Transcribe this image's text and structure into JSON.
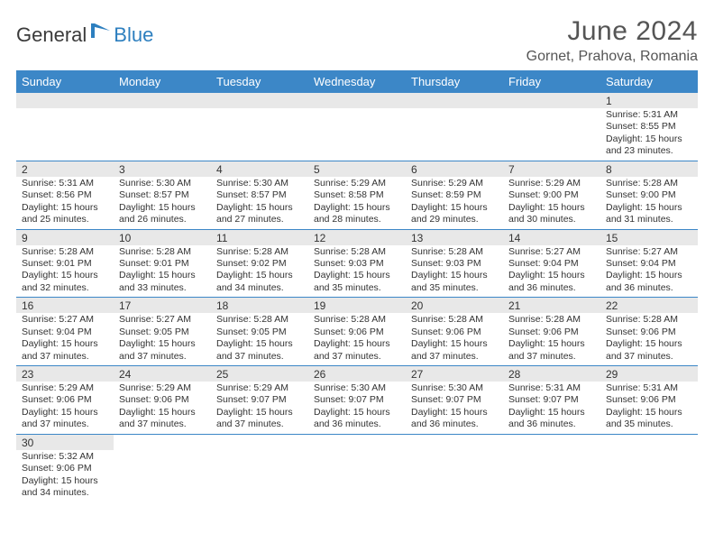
{
  "branding": {
    "general": "General",
    "blue": "Blue",
    "icon_color": "#2d7fbf"
  },
  "header": {
    "title": "June 2024",
    "location": "Gornet, Prahova, Romania"
  },
  "colors": {
    "header_bg": "#3c87c7",
    "header_text": "#ffffff",
    "daynum_bg": "#e8e8e8",
    "row_border": "#3c87c7",
    "body_text": "#333333",
    "title_text": "#555555"
  },
  "weekdays": [
    "Sunday",
    "Monday",
    "Tuesday",
    "Wednesday",
    "Thursday",
    "Friday",
    "Saturday"
  ],
  "weeks": [
    [
      null,
      null,
      null,
      null,
      null,
      null,
      {
        "n": "1",
        "sr": "Sunrise: 5:31 AM",
        "ss": "Sunset: 8:55 PM",
        "d1": "Daylight: 15 hours",
        "d2": "and 23 minutes."
      }
    ],
    [
      {
        "n": "2",
        "sr": "Sunrise: 5:31 AM",
        "ss": "Sunset: 8:56 PM",
        "d1": "Daylight: 15 hours",
        "d2": "and 25 minutes."
      },
      {
        "n": "3",
        "sr": "Sunrise: 5:30 AM",
        "ss": "Sunset: 8:57 PM",
        "d1": "Daylight: 15 hours",
        "d2": "and 26 minutes."
      },
      {
        "n": "4",
        "sr": "Sunrise: 5:30 AM",
        "ss": "Sunset: 8:57 PM",
        "d1": "Daylight: 15 hours",
        "d2": "and 27 minutes."
      },
      {
        "n": "5",
        "sr": "Sunrise: 5:29 AM",
        "ss": "Sunset: 8:58 PM",
        "d1": "Daylight: 15 hours",
        "d2": "and 28 minutes."
      },
      {
        "n": "6",
        "sr": "Sunrise: 5:29 AM",
        "ss": "Sunset: 8:59 PM",
        "d1": "Daylight: 15 hours",
        "d2": "and 29 minutes."
      },
      {
        "n": "7",
        "sr": "Sunrise: 5:29 AM",
        "ss": "Sunset: 9:00 PM",
        "d1": "Daylight: 15 hours",
        "d2": "and 30 minutes."
      },
      {
        "n": "8",
        "sr": "Sunrise: 5:28 AM",
        "ss": "Sunset: 9:00 PM",
        "d1": "Daylight: 15 hours",
        "d2": "and 31 minutes."
      }
    ],
    [
      {
        "n": "9",
        "sr": "Sunrise: 5:28 AM",
        "ss": "Sunset: 9:01 PM",
        "d1": "Daylight: 15 hours",
        "d2": "and 32 minutes."
      },
      {
        "n": "10",
        "sr": "Sunrise: 5:28 AM",
        "ss": "Sunset: 9:01 PM",
        "d1": "Daylight: 15 hours",
        "d2": "and 33 minutes."
      },
      {
        "n": "11",
        "sr": "Sunrise: 5:28 AM",
        "ss": "Sunset: 9:02 PM",
        "d1": "Daylight: 15 hours",
        "d2": "and 34 minutes."
      },
      {
        "n": "12",
        "sr": "Sunrise: 5:28 AM",
        "ss": "Sunset: 9:03 PM",
        "d1": "Daylight: 15 hours",
        "d2": "and 35 minutes."
      },
      {
        "n": "13",
        "sr": "Sunrise: 5:28 AM",
        "ss": "Sunset: 9:03 PM",
        "d1": "Daylight: 15 hours",
        "d2": "and 35 minutes."
      },
      {
        "n": "14",
        "sr": "Sunrise: 5:27 AM",
        "ss": "Sunset: 9:04 PM",
        "d1": "Daylight: 15 hours",
        "d2": "and 36 minutes."
      },
      {
        "n": "15",
        "sr": "Sunrise: 5:27 AM",
        "ss": "Sunset: 9:04 PM",
        "d1": "Daylight: 15 hours",
        "d2": "and 36 minutes."
      }
    ],
    [
      {
        "n": "16",
        "sr": "Sunrise: 5:27 AM",
        "ss": "Sunset: 9:04 PM",
        "d1": "Daylight: 15 hours",
        "d2": "and 37 minutes."
      },
      {
        "n": "17",
        "sr": "Sunrise: 5:27 AM",
        "ss": "Sunset: 9:05 PM",
        "d1": "Daylight: 15 hours",
        "d2": "and 37 minutes."
      },
      {
        "n": "18",
        "sr": "Sunrise: 5:28 AM",
        "ss": "Sunset: 9:05 PM",
        "d1": "Daylight: 15 hours",
        "d2": "and 37 minutes."
      },
      {
        "n": "19",
        "sr": "Sunrise: 5:28 AM",
        "ss": "Sunset: 9:06 PM",
        "d1": "Daylight: 15 hours",
        "d2": "and 37 minutes."
      },
      {
        "n": "20",
        "sr": "Sunrise: 5:28 AM",
        "ss": "Sunset: 9:06 PM",
        "d1": "Daylight: 15 hours",
        "d2": "and 37 minutes."
      },
      {
        "n": "21",
        "sr": "Sunrise: 5:28 AM",
        "ss": "Sunset: 9:06 PM",
        "d1": "Daylight: 15 hours",
        "d2": "and 37 minutes."
      },
      {
        "n": "22",
        "sr": "Sunrise: 5:28 AM",
        "ss": "Sunset: 9:06 PM",
        "d1": "Daylight: 15 hours",
        "d2": "and 37 minutes."
      }
    ],
    [
      {
        "n": "23",
        "sr": "Sunrise: 5:29 AM",
        "ss": "Sunset: 9:06 PM",
        "d1": "Daylight: 15 hours",
        "d2": "and 37 minutes."
      },
      {
        "n": "24",
        "sr": "Sunrise: 5:29 AM",
        "ss": "Sunset: 9:06 PM",
        "d1": "Daylight: 15 hours",
        "d2": "and 37 minutes."
      },
      {
        "n": "25",
        "sr": "Sunrise: 5:29 AM",
        "ss": "Sunset: 9:07 PM",
        "d1": "Daylight: 15 hours",
        "d2": "and 37 minutes."
      },
      {
        "n": "26",
        "sr": "Sunrise: 5:30 AM",
        "ss": "Sunset: 9:07 PM",
        "d1": "Daylight: 15 hours",
        "d2": "and 36 minutes."
      },
      {
        "n": "27",
        "sr": "Sunrise: 5:30 AM",
        "ss": "Sunset: 9:07 PM",
        "d1": "Daylight: 15 hours",
        "d2": "and 36 minutes."
      },
      {
        "n": "28",
        "sr": "Sunrise: 5:31 AM",
        "ss": "Sunset: 9:07 PM",
        "d1": "Daylight: 15 hours",
        "d2": "and 36 minutes."
      },
      {
        "n": "29",
        "sr": "Sunrise: 5:31 AM",
        "ss": "Sunset: 9:06 PM",
        "d1": "Daylight: 15 hours",
        "d2": "and 35 minutes."
      }
    ],
    [
      {
        "n": "30",
        "sr": "Sunrise: 5:32 AM",
        "ss": "Sunset: 9:06 PM",
        "d1": "Daylight: 15 hours",
        "d2": "and 34 minutes."
      },
      null,
      null,
      null,
      null,
      null,
      null
    ]
  ]
}
